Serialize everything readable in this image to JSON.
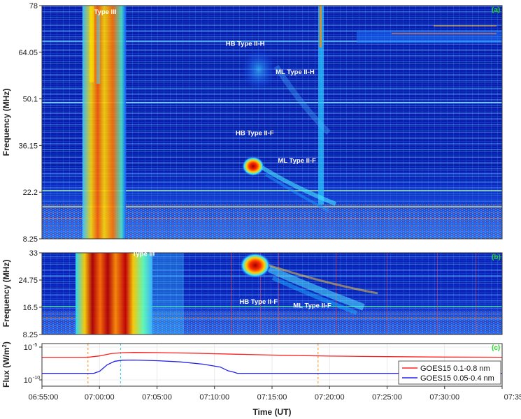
{
  "chart_data": [
    {
      "type": "heatmap",
      "panel_label": "(a)",
      "ylabel": "Frequency (MHz)",
      "ylim": [
        8.25,
        78
      ],
      "yticks": [
        "8.25",
        "22.2",
        "36.15",
        "50.1",
        "64.05",
        "78"
      ],
      "xlim": [
        "06:55:00",
        "07:35:00"
      ],
      "annotations": [
        {
          "text": "Type III",
          "time": "07:00:30",
          "freq": 75.5
        },
        {
          "text": "HB Type II-H",
          "time": "07:12:40",
          "freq": 66.0
        },
        {
          "text": "ML Type II-H",
          "time": "07:17:00",
          "freq": 57.5
        },
        {
          "text": "HB Type II-F",
          "time": "07:13:30",
          "freq": 39.3
        },
        {
          "text": "ML Type II-F",
          "time": "07:17:10",
          "freq": 31.0
        }
      ]
    },
    {
      "type": "heatmap",
      "panel_label": "(b)",
      "ylabel": "Frequency (MHz)",
      "ylim": [
        8.25,
        33
      ],
      "yticks": [
        "8.25",
        "16.5",
        "24.75",
        "33"
      ],
      "xlim": [
        "06:55:00",
        "07:35:00"
      ],
      "annotations": [
        {
          "text": "Type III",
          "time": "07:03:50",
          "freq": 32.0
        },
        {
          "text": "HB Type II-F",
          "time": "07:13:50",
          "freq": 17.6
        },
        {
          "text": "ML Type II-F",
          "time": "07:18:30",
          "freq": 16.4
        }
      ]
    },
    {
      "type": "line",
      "panel_label": "(c)",
      "ylabel": "Flux (W/m",
      "ylabel_sup": "2",
      "ylabel_end": ")",
      "yscale": "log",
      "ylim": [
        1e-10,
        1e-05
      ],
      "yticks": [
        {
          "base": "10",
          "exp": "-5"
        },
        {
          "base": "10",
          "exp": "-10"
        }
      ],
      "xlabel": "Time (UT)",
      "xticks": [
        "06:55:00",
        "07:00:00",
        "07:05:00",
        "07:10:00",
        "07:15:00",
        "07:20:00",
        "07:25:00",
        "07:30:00",
        "07:35:00"
      ],
      "legend_position": "right",
      "series": [
        {
          "name": "GOES15 0.1-0.8 nm",
          "color": "#ff2222",
          "x": [
            "06:55:00",
            "06:59:00",
            "07:00:00",
            "07:01:00",
            "07:02:00",
            "07:03:00",
            "07:05:00",
            "07:08:00",
            "07:12:00",
            "07:16:00",
            "07:20:00",
            "07:25:00",
            "07:30:00",
            "07:35:00"
          ],
          "y": [
            2.8e-07,
            2.8e-07,
            4.5e-07,
            1e-06,
            1.4e-06,
            1.5e-06,
            1.45e-06,
            1.2e-06,
            8e-07,
            5.5e-07,
            4.2e-07,
            3.5e-07,
            3e-07,
            2.8e-07
          ]
        },
        {
          "name": "GOES15 0.05-0.4 nm",
          "color": "#2222ee",
          "x": [
            "06:55:00",
            "06:59:30",
            "07:00:00",
            "07:00:40",
            "07:01:20",
            "07:02:00",
            "07:03:00",
            "07:05:00",
            "07:07:00",
            "07:09:00",
            "07:10:30",
            "07:11:10",
            "07:11:40",
            "07:12:00",
            "07:20:00",
            "07:35:00"
          ],
          "y": [
            1e-09,
            1e-09,
            2e-09,
            2e-08,
            7e-08,
            1e-07,
            1.05e-07,
            8.5e-08,
            5.5e-08,
            2.5e-08,
            9e-09,
            2.5e-09,
            1.5e-09,
            1e-09,
            1e-09,
            1e-09
          ]
        }
      ],
      "markers": [
        {
          "time": "06:59:00",
          "color": "#ff8800"
        },
        {
          "time": "07:01:50",
          "color": "#22ccee"
        },
        {
          "time": "07:19:00",
          "color": "#ff8800"
        }
      ]
    }
  ]
}
